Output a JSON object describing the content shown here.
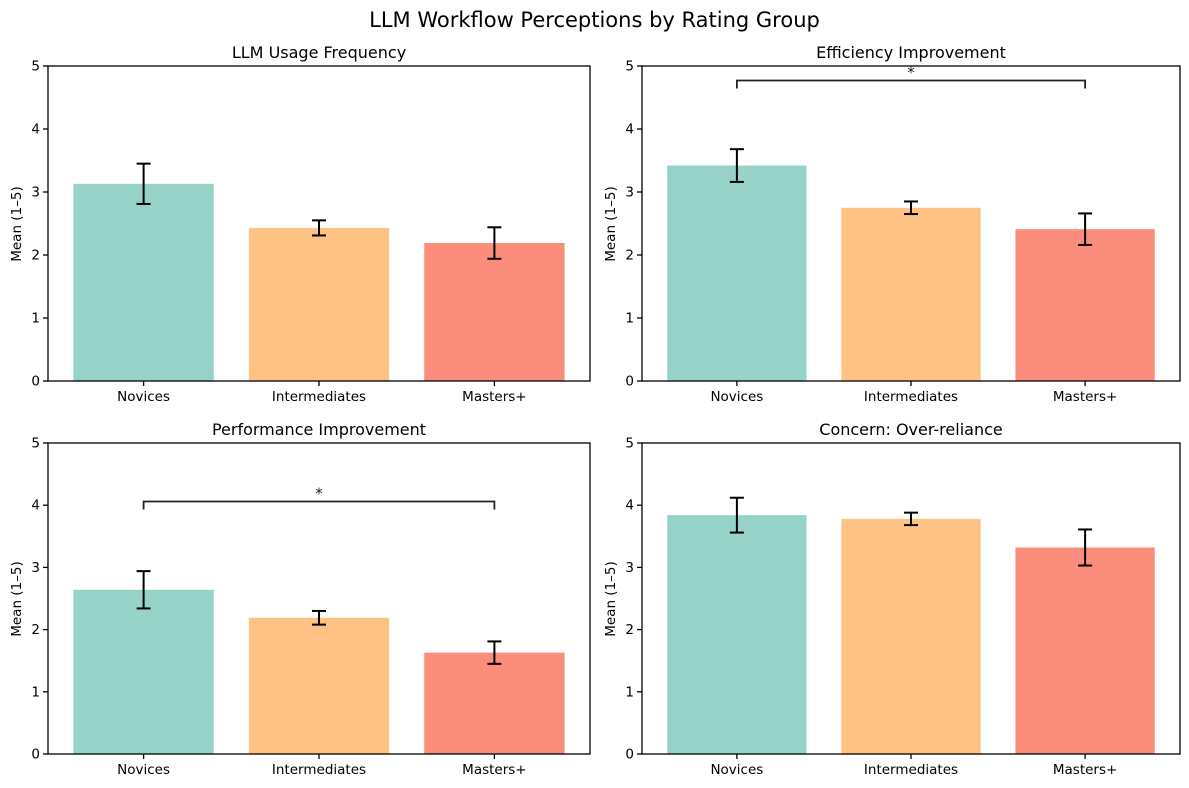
{
  "figure_title": "LLM Workflow Perceptions by Rating Group",
  "palette": {
    "bar_colors": [
      "#96d2c8",
      "#ffc285",
      "#fa8d7c"
    ],
    "error_color": "#000000",
    "bracket_color": "#222222",
    "axis_color": "#000000"
  },
  "chart_data": [
    {
      "type": "bar",
      "title": "LLM Usage Frequency",
      "ylabel": "Mean (1–5)",
      "ylim": [
        0,
        5
      ],
      "yticks": [
        0,
        1,
        2,
        3,
        4,
        5
      ],
      "grid": false,
      "legend": null,
      "categories": [
        "Novices",
        "Intermediates",
        "Masters+"
      ],
      "values": [
        3.13,
        2.43,
        2.19
      ],
      "errors": [
        0.32,
        0.12,
        0.25
      ],
      "significance": null
    },
    {
      "type": "bar",
      "title": "Efficiency Improvement",
      "ylabel": "Mean (1–5)",
      "ylim": [
        0,
        5
      ],
      "yticks": [
        0,
        1,
        2,
        3,
        4,
        5
      ],
      "grid": false,
      "legend": null,
      "categories": [
        "Novices",
        "Intermediates",
        "Masters+"
      ],
      "values": [
        3.42,
        2.75,
        2.41
      ],
      "errors": [
        0.26,
        0.1,
        0.25
      ],
      "significance": {
        "from": "Novices",
        "to": "Masters+",
        "label": "*",
        "bar_y": 4.77
      }
    },
    {
      "type": "bar",
      "title": "Performance Improvement",
      "ylabel": "Mean (1–5)",
      "ylim": [
        0,
        5
      ],
      "yticks": [
        0,
        1,
        2,
        3,
        4,
        5
      ],
      "grid": false,
      "legend": null,
      "categories": [
        "Novices",
        "Intermediates",
        "Masters+"
      ],
      "values": [
        2.64,
        2.19,
        1.63
      ],
      "errors": [
        0.3,
        0.11,
        0.18
      ],
      "significance": {
        "from": "Novices",
        "to": "Masters+",
        "label": "*",
        "bar_y": 4.06
      }
    },
    {
      "type": "bar",
      "title": "Concern: Over-reliance",
      "ylabel": "Mean (1–5)",
      "ylim": [
        0,
        5
      ],
      "yticks": [
        0,
        1,
        2,
        3,
        4,
        5
      ],
      "grid": false,
      "legend": null,
      "categories": [
        "Novices",
        "Intermediates",
        "Masters+"
      ],
      "values": [
        3.84,
        3.78,
        3.32
      ],
      "errors": [
        0.28,
        0.1,
        0.29
      ],
      "significance": null
    }
  ]
}
